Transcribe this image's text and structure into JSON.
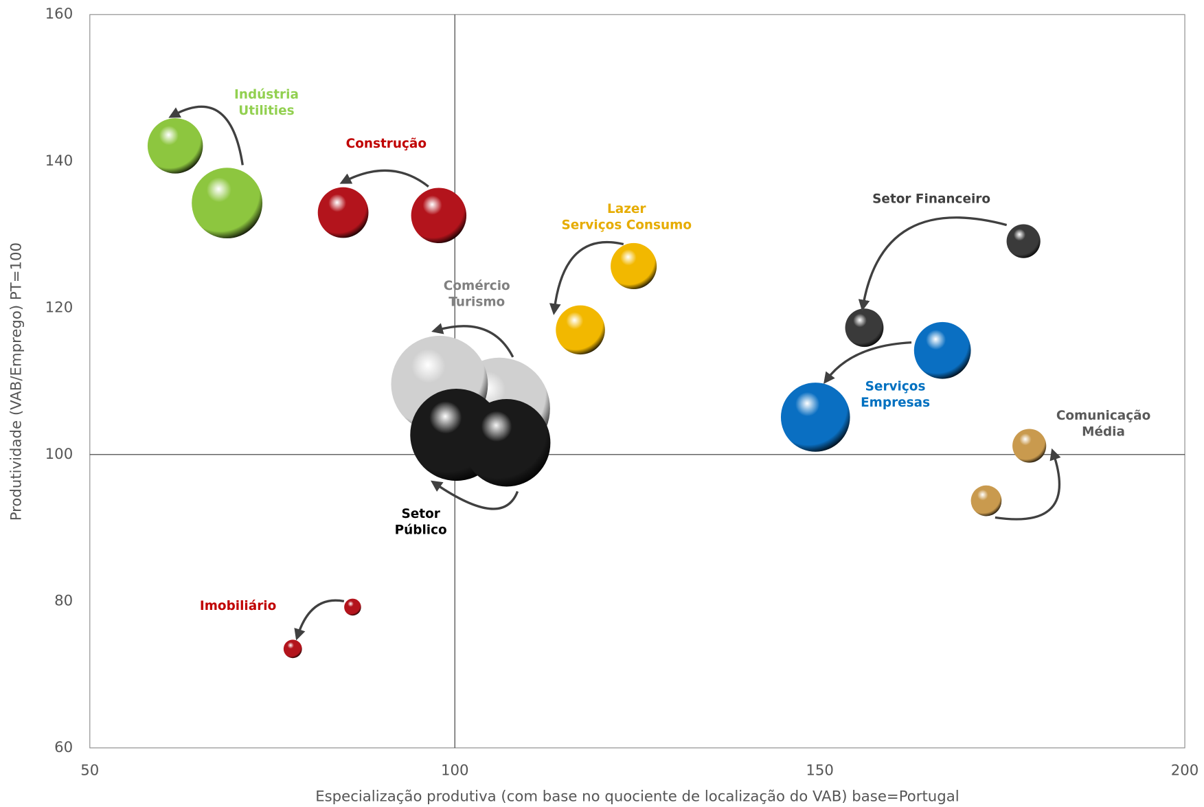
{
  "chart_data": {
    "type": "bubble",
    "x_label": "Especialização produtiva (com base no quociente de localização do VAB) base=Portugal",
    "y_label": "Produtividade (VAB/Emprego) PT=100",
    "xlim": [
      50,
      200
    ],
    "xticks": [
      50,
      100,
      150,
      200
    ],
    "ylim": [
      60,
      160
    ],
    "yticks": [
      60,
      80,
      100,
      120,
      140,
      160
    ],
    "x_reference": 100,
    "y_reference": 100,
    "series": [
      {
        "name_lines": [
          "Indústria",
          "Utilities"
        ],
        "color": "#8dc63f",
        "label_color": "#92d050",
        "x": [
          68.8,
          61.7
        ],
        "values": [
          134.3,
          142.1
        ],
        "sizes": [
          46,
          36
        ]
      },
      {
        "name_lines": [
          "Construção"
        ],
        "color": "#b3141c",
        "label_color": "#c00000",
        "x": [
          97.8,
          84.7
        ],
        "values": [
          132.6,
          133.0
        ],
        "sizes": [
          36,
          33
        ]
      },
      {
        "name_lines": [
          "Lazer",
          "Serviços Consumo"
        ],
        "color": "#f2b800",
        "label_color": "#e6ac00",
        "x": [
          124.5,
          117.2
        ],
        "values": [
          125.7,
          117.0
        ],
        "sizes": [
          30,
          32
        ]
      },
      {
        "name_lines": [
          "Comércio",
          "Turismo"
        ],
        "color": "#d0d0d0",
        "label_color": "#808080",
        "x": [
          106.1,
          97.9
        ],
        "values": [
          106.3,
          109.6
        ],
        "sizes": [
          66,
          63
        ]
      },
      {
        "name_lines": [
          "Setor",
          "Público"
        ],
        "color": "#1a1a1a",
        "label_color": "#000000",
        "x": [
          107.1,
          100.2
        ],
        "values": [
          101.6,
          102.7
        ],
        "sizes": [
          57,
          60
        ]
      },
      {
        "name_lines": [
          "Setor Financeiro"
        ],
        "color": "#3a3a3a",
        "label_color": "#404040",
        "x": [
          177.9,
          156.1
        ],
        "values": [
          129.1,
          117.3
        ],
        "sizes": [
          22,
          25
        ]
      },
      {
        "name_lines": [
          "Serviços",
          "Empresas"
        ],
        "color": "#0a6fc2",
        "label_color": "#0070c0",
        "x": [
          166.8,
          149.4
        ],
        "values": [
          114.2,
          105.1
        ],
        "sizes": [
          37,
          45
        ]
      },
      {
        "name_lines": [
          "Comunicação",
          "Média"
        ],
        "color": "#c99a4e",
        "label_color": "#595959",
        "x": [
          172.8,
          178.7
        ],
        "values": [
          93.7,
          101.2
        ],
        "sizes": [
          20,
          22
        ]
      },
      {
        "name_lines": [
          "Imobiliário"
        ],
        "color": "#b3141c",
        "label_color": "#c00000",
        "x": [
          86.0,
          77.8
        ],
        "values": [
          79.2,
          73.5
        ],
        "sizes": [
          11,
          12
        ]
      }
    ]
  }
}
